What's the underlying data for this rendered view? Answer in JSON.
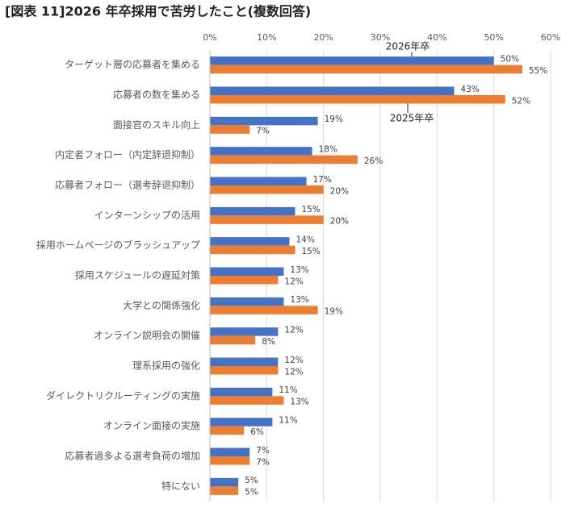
{
  "chart_data": {
    "type": "hbar",
    "title": "[図表 11]2026 年卒採用で苦労したこと(複数回答)",
    "categories": [
      "ターゲット層の応募者を集める",
      "応募者の数を集める",
      "面接官のスキル向上",
      "内定者フォロー（内定辞退抑制）",
      "応募者フォロー（選考辞退抑制）",
      "インターンシップの活用",
      "採用ホームページのブラッシュアップ",
      "採用スケジュールの遅延対策",
      "大学との関係強化",
      "オンライン説明会の開催",
      "理系採用の強化",
      "ダイレクトリクルーティングの実施",
      "オンライン面接の実施",
      "応募者過多よる選考負荷の増加",
      "特にない"
    ],
    "series": [
      {
        "name": "2026年卒",
        "color": "#4472c4",
        "values": [
          50,
          43,
          19,
          18,
          17,
          15,
          14,
          13,
          13,
          12,
          12,
          11,
          11,
          7,
          5
        ],
        "value_labels": [
          "50%",
          "43%",
          "19%",
          "18%",
          "17%",
          "15%",
          "14%",
          "13%",
          "13%",
          "12%",
          "12%",
          "11%",
          "11%",
          "7%",
          "5%"
        ]
      },
      {
        "name": "2025年卒",
        "color": "#ed7d31",
        "values": [
          55,
          52,
          7,
          26,
          20,
          20,
          15,
          12,
          19,
          8,
          12,
          13,
          6,
          7,
          5
        ],
        "value_labels": [
          "55%",
          "52%",
          "7%",
          "26%",
          "20%",
          "20%",
          "15%",
          "12%",
          "19%",
          "8%",
          "12%",
          "13%",
          "6%",
          "7%",
          "5%"
        ]
      }
    ],
    "xlim": [
      0,
      60
    ],
    "xticks": [
      {
        "value": 0,
        "label": "0%"
      },
      {
        "value": 10,
        "label": "10%"
      },
      {
        "value": 20,
        "label": "20%"
      },
      {
        "value": 30,
        "label": "30%"
      },
      {
        "value": 40,
        "label": "40%"
      },
      {
        "value": 50,
        "label": "50%"
      },
      {
        "value": 60,
        "label": "60%"
      }
    ],
    "grid": true
  }
}
